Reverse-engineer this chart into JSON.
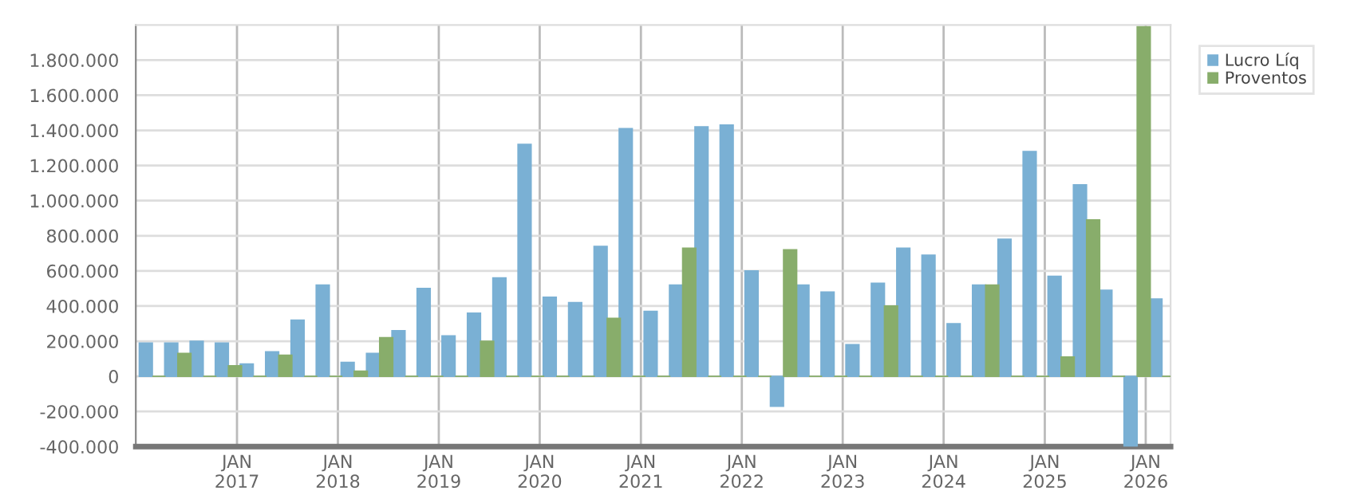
{
  "chart_data": {
    "type": "bar",
    "x": [
      "2016-03",
      "2016-06",
      "2016-09",
      "2016-12",
      "2017-03",
      "2017-06",
      "2017-09",
      "2017-12",
      "2018-03",
      "2018-06",
      "2018-09",
      "2018-12",
      "2019-03",
      "2019-06",
      "2019-09",
      "2019-12",
      "2020-03",
      "2020-06",
      "2020-09",
      "2020-12",
      "2021-03",
      "2021-06",
      "2021-09",
      "2021-12",
      "2022-03",
      "2022-06",
      "2022-09",
      "2022-12",
      "2023-03",
      "2023-06",
      "2023-09",
      "2023-12",
      "2024-03",
      "2024-06",
      "2024-09",
      "2024-12",
      "2025-03",
      "2025-06",
      "2025-09",
      "2025-12",
      "2026-03"
    ],
    "series": [
      {
        "name": "Lucro Líq",
        "color": "#7ab0d4",
        "values": [
          190000,
          190000,
          200000,
          190000,
          70000,
          140000,
          320000,
          520000,
          80000,
          130000,
          260000,
          500000,
          230000,
          360000,
          560000,
          1320000,
          450000,
          420000,
          740000,
          1410000,
          370000,
          520000,
          1420000,
          1430000,
          600000,
          -170000,
          520000,
          480000,
          180000,
          530000,
          730000,
          690000,
          300000,
          520000,
          780000,
          1280000,
          570000,
          1090000,
          490000,
          -400000,
          440000
        ]
      },
      {
        "name": "Proventos",
        "color": "#88ad6b",
        "values": [
          0,
          130000,
          0,
          60000,
          0,
          120000,
          0,
          0,
          30000,
          220000,
          0,
          0,
          0,
          200000,
          0,
          0,
          0,
          0,
          330000,
          0,
          0,
          730000,
          0,
          0,
          0,
          720000,
          0,
          0,
          0,
          400000,
          0,
          0,
          0,
          520000,
          0,
          0,
          110000,
          890000,
          0,
          1990000,
          0
        ]
      }
    ],
    "xlim": [
      "2016-01",
      "2026-04"
    ],
    "xticks": [
      {
        "value": "2017-01",
        "label": "JAN\n2017"
      },
      {
        "value": "2018-01",
        "label": "JAN\n2018"
      },
      {
        "value": "2019-01",
        "label": "JAN\n2019"
      },
      {
        "value": "2020-01",
        "label": "JAN\n2020"
      },
      {
        "value": "2021-01",
        "label": "JAN\n2021"
      },
      {
        "value": "2022-01",
        "label": "JAN\n2022"
      },
      {
        "value": "2023-01",
        "label": "JAN\n2023"
      },
      {
        "value": "2024-01",
        "label": "JAN\n2024"
      },
      {
        "value": "2025-01",
        "label": "JAN\n2025"
      },
      {
        "value": "2026-01",
        "label": "JAN\n2026"
      }
    ],
    "ylim": [
      -400000,
      2000000
    ],
    "yticks": [
      {
        "value": -400000,
        "label": "-400.000"
      },
      {
        "value": -200000,
        "label": "-200.000"
      },
      {
        "value": 0,
        "label": "0"
      },
      {
        "value": 200000,
        "label": "200.000"
      },
      {
        "value": 400000,
        "label": "400.000"
      },
      {
        "value": 600000,
        "label": "600.000"
      },
      {
        "value": 800000,
        "label": "800.000"
      },
      {
        "value": 1000000,
        "label": "1.000.000"
      },
      {
        "value": 1200000,
        "label": "1.200.000"
      },
      {
        "value": 1400000,
        "label": "1.400.000"
      },
      {
        "value": 1600000,
        "label": "1.600.000"
      },
      {
        "value": 1800000,
        "label": "1.800.000"
      }
    ],
    "grid": true,
    "legend": "top right"
  }
}
